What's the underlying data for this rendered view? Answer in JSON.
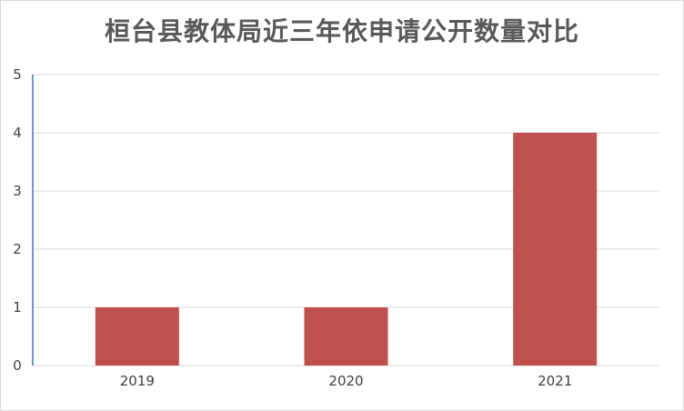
{
  "chart_data": {
    "type": "bar",
    "title": "桓台县教体局近三年依申请公开数量对比",
    "categories": [
      "2019",
      "2020",
      "2021"
    ],
    "values": [
      1,
      1,
      4
    ],
    "ylim": [
      0,
      5
    ],
    "yticks": [
      "0",
      "1",
      "2",
      "3",
      "4",
      "5"
    ],
    "xlabel": "",
    "ylabel": "",
    "grid": true,
    "legend": "none",
    "colors": {
      "bar": "#C0504D",
      "grid": "#D9D9D9",
      "y_axis": "#4472C4",
      "title": "#595959"
    }
  }
}
